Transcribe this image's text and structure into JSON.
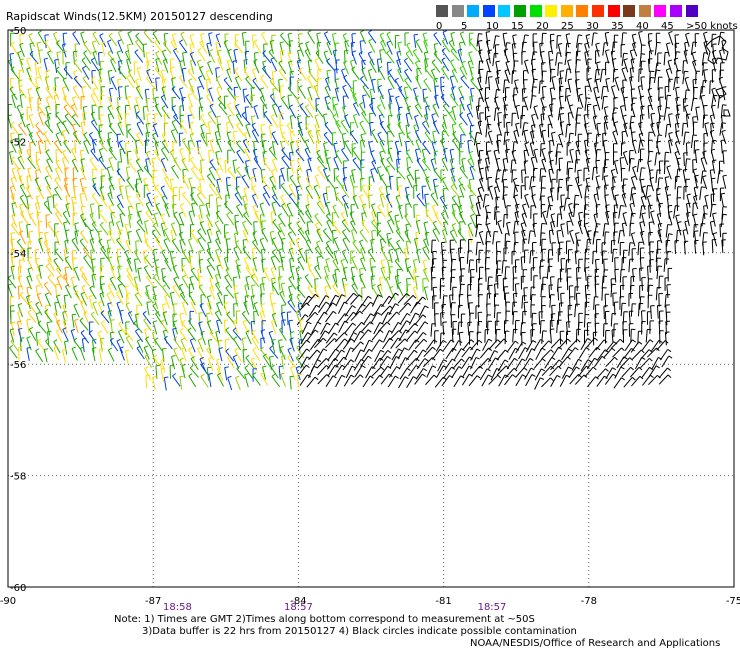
{
  "header": {
    "title": "Rapidscat Winds(12.5KM) 20150127 descending"
  },
  "legend": {
    "colors": [
      "#555555",
      "#888888",
      "#00aaff",
      "#0044ff",
      "#00c8ff",
      "#00a000",
      "#00e000",
      "#ffee00",
      "#ffb000",
      "#ff8000",
      "#ff3000",
      "#ff0000",
      "#7a3a1a",
      "#c08040",
      "#ff00ff",
      "#aa00ff",
      "#5000c0"
    ],
    "labels": [
      "0",
      "5",
      "10",
      "15",
      "20",
      "25",
      "30",
      "35",
      "40",
      "45",
      ">50 knots"
    ],
    "label_values": [
      0,
      5,
      10,
      15,
      20,
      25,
      30,
      35,
      40,
      45,
      50
    ]
  },
  "map": {
    "lon_range": [
      -90,
      -75
    ],
    "lat_range": [
      -60,
      -50
    ],
    "x_ticks": [
      "-90",
      "-87",
      "-84",
      "-81",
      "-78",
      "-75"
    ],
    "x_tick_values": [
      -90,
      -87,
      -84,
      -81,
      -78,
      -75
    ],
    "y_ticks": [
      "-50",
      "-52",
      "-54",
      "-56",
      "-58",
      "-60"
    ],
    "y_tick_values": [
      -50,
      -52,
      -54,
      -56,
      -58,
      -60
    ],
    "grid": "dotted",
    "time_labels": [
      {
        "text": "18:58",
        "lon": -86.5
      },
      {
        "text": "18:57",
        "lon": -84
      },
      {
        "text": "18:57",
        "lon": -80
      }
    ]
  },
  "footer": {
    "note1": "Note: 1) Times are GMT 2)Times along bottom correspond to measurement at ~50S",
    "note2": "3)Data buffer is 22 hrs from 20150127 4) Black circles indicate possible contamination",
    "credit": "NOAA/NESDIS/Office of Research and Applications"
  }
}
